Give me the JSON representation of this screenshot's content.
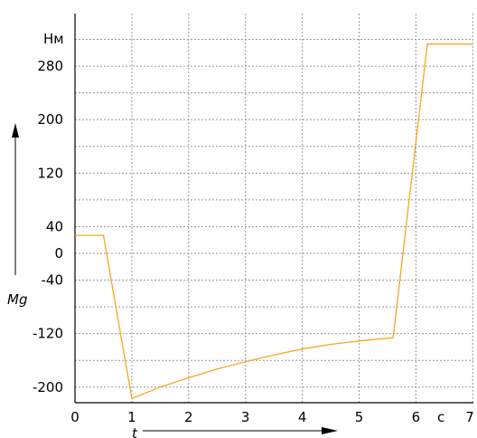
{
  "chart_data": {
    "type": "line",
    "title": "",
    "x_ticks": [
      "0",
      "1",
      "2",
      "3",
      "4",
      "5",
      "6",
      "7"
    ],
    "y_ticks": [
      {
        "value": 280,
        "label": "280"
      },
      {
        "value": 200,
        "label": "200"
      },
      {
        "value": 120,
        "label": "120"
      },
      {
        "value": 40,
        "label": "40"
      },
      {
        "value": 0,
        "label": "0"
      },
      {
        "value": -40,
        "label": "-40"
      },
      {
        "value": -120,
        "label": "-120"
      },
      {
        "value": -200,
        "label": "-200"
      }
    ],
    "y_unit": "Нм",
    "x_unit": "с",
    "xlabel": "t",
    "ylabel": "Mg",
    "xlim": [
      0,
      7
    ],
    "ylim": [
      -222,
      320
    ],
    "grid": true,
    "series": [
      {
        "color": "#f5a623",
        "x": [
          0.0,
          0.5,
          1.0,
          1.5,
          2.0,
          2.5,
          3.0,
          3.5,
          4.0,
          4.5,
          5.0,
          5.6,
          6.2,
          7.0
        ],
        "y": [
          27,
          27,
          -217,
          -200,
          -186,
          -173,
          -162,
          -152,
          -143,
          -136,
          -131,
          -126,
          313,
          313
        ]
      }
    ]
  }
}
